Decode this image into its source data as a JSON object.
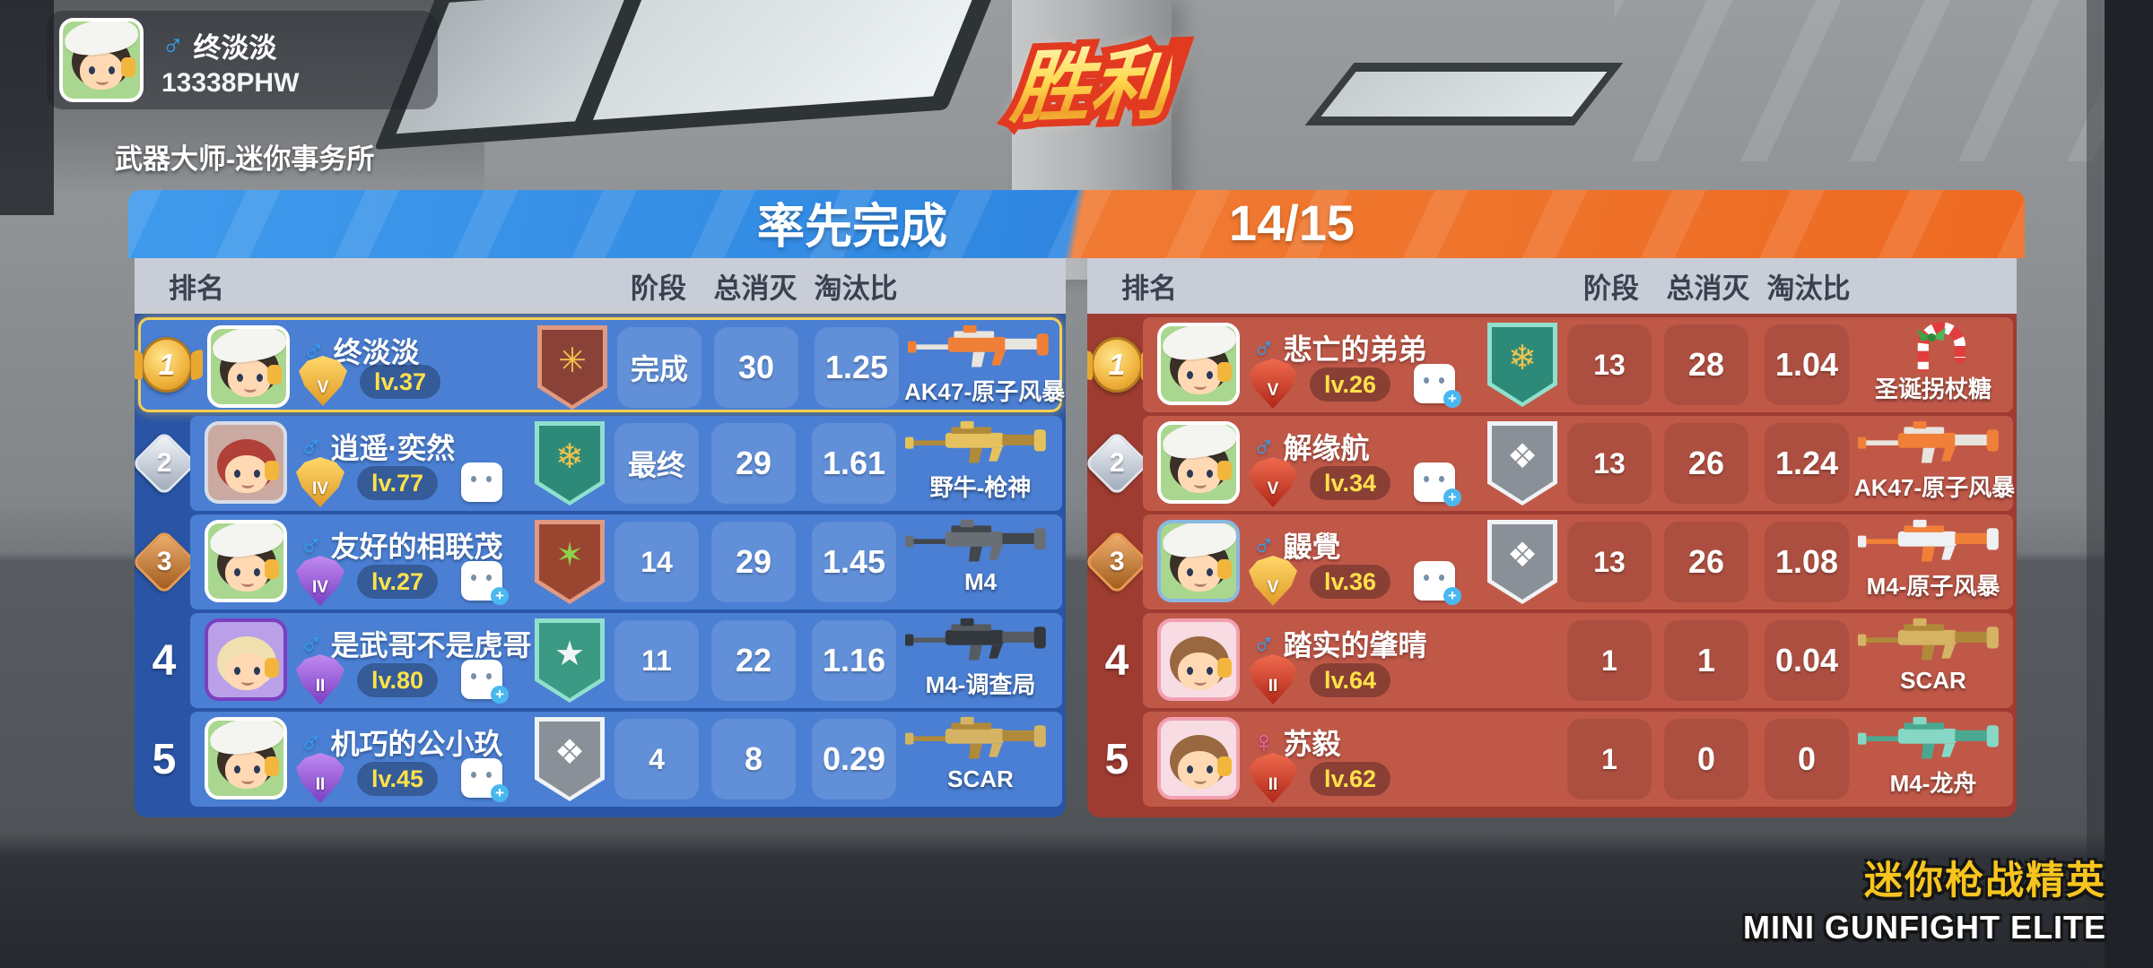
{
  "player_card": {
    "gender": "male",
    "name": "终淡淡",
    "id": "13338PHW"
  },
  "mode_label": "武器大师-迷你事务所",
  "victory_label": "胜利",
  "header": {
    "left_title": "率先完成",
    "right_score": "14/15"
  },
  "columns": {
    "rank": "排名",
    "stage": "阶段",
    "kills": "总消灭",
    "ratio": "淘汰比"
  },
  "teams": [
    {
      "side": "blue",
      "rows": [
        {
          "rank": "1",
          "rank_style": "gold",
          "highlight": true,
          "gender": "male",
          "name": "终淡淡",
          "badge": {
            "color": "gold",
            "tier": "V"
          },
          "level": "lv.37",
          "friend": null,
          "banner": {
            "outer": "#e09a82",
            "inner": "#8a4238",
            "emblem": "✳",
            "emblem_color": "#f0c24e"
          },
          "stage": "完成",
          "kills": "30",
          "ratio": "1.25",
          "weapon": {
            "name": "AK47-原子风暴",
            "type": "rifle",
            "primary": "#f08038",
            "secondary": "#e8e4de"
          },
          "avatar": {
            "bg": "#a9d78f",
            "frame": "#ffffff",
            "hair": "#3a3028",
            "hat": true
          }
        },
        {
          "rank": "2",
          "rank_style": "silver",
          "highlight": false,
          "gender": "male",
          "name": "逍遥·奕然",
          "badge": {
            "color": "gold",
            "tier": "IV"
          },
          "level": "lv.77",
          "friend": "chat",
          "banner": {
            "outer": "#8fe0cc",
            "inner": "#2e8a78",
            "emblem": "❄",
            "emblem_color": "#f0c24e"
          },
          "stage": "最终",
          "kills": "29",
          "ratio": "1.61",
          "weapon": {
            "name": "野牛-枪神",
            "type": "rifle",
            "primary": "#e6c25e",
            "secondary": "#b08a3a"
          },
          "avatar": {
            "bg": "#caa9a0",
            "frame": "#d7dde8",
            "hair": "#b04038",
            "hat": false
          }
        },
        {
          "rank": "3",
          "rank_style": "bronze",
          "highlight": false,
          "gender": "male",
          "name": "友好的相联茂",
          "badge": {
            "color": "purple",
            "tier": "IV"
          },
          "level": "lv.27",
          "friend": "add",
          "banner": {
            "outer": "#e09a82",
            "inner": "#9a4530",
            "emblem": "✶",
            "emblem_color": "#8fd04a"
          },
          "stage": "14",
          "kills": "29",
          "ratio": "1.45",
          "weapon": {
            "name": "M4",
            "type": "rifle",
            "primary": "#6a6f75",
            "secondary": "#42474c"
          },
          "avatar": {
            "bg": "#a9d78f",
            "frame": "#ffffff",
            "hair": "#3a3028",
            "hat": true
          }
        },
        {
          "rank": "4",
          "rank_style": "plain",
          "highlight": false,
          "gender": "male",
          "name": "是武哥不是虎哥",
          "badge": {
            "color": "purple",
            "tier": "II"
          },
          "level": "lv.80",
          "friend": "add",
          "banner": {
            "outer": "#8fe0cc",
            "inner": "#3a9a84",
            "emblem": "★",
            "emblem_color": "#f2f4f6"
          },
          "stage": "11",
          "kills": "22",
          "ratio": "1.16",
          "weapon": {
            "name": "M4-调查局",
            "type": "rifle",
            "primary": "#33383e",
            "secondary": "#565b61"
          },
          "avatar": {
            "bg": "#b9a0e8",
            "frame": "#7a3fc0",
            "hair": "#f0e0b0",
            "hat": false
          }
        },
        {
          "rank": "5",
          "rank_style": "plain",
          "highlight": false,
          "gender": "male",
          "name": "机巧的公小玖",
          "badge": {
            "color": "purple",
            "tier": "II"
          },
          "level": "lv.45",
          "friend": "add",
          "banner": {
            "outer": "#f0f2f4",
            "inner": "#8a9098",
            "emblem": "❖",
            "emblem_color": "#ffffff"
          },
          "stage": "4",
          "kills": "8",
          "ratio": "0.29",
          "weapon": {
            "name": "SCAR",
            "type": "rifle",
            "primary": "#d4b464",
            "secondary": "#b08a3a"
          },
          "avatar": {
            "bg": "#a9d78f",
            "frame": "#ffffff",
            "hair": "#3a3028",
            "hat": true
          }
        }
      ]
    },
    {
      "side": "red",
      "rows": [
        {
          "rank": "1",
          "rank_style": "gold",
          "highlight": false,
          "gender": "male",
          "name": "悲亡的弟弟",
          "badge": {
            "color": "red",
            "tier": "V"
          },
          "level": "lv.26",
          "friend": "add",
          "banner": {
            "outer": "#8fe0cc",
            "inner": "#2e8a78",
            "emblem": "❄",
            "emblem_color": "#f0c24e"
          },
          "stage": "13",
          "kills": "28",
          "ratio": "1.04",
          "weapon": {
            "name": "圣诞拐杖糖",
            "type": "candy",
            "primary": "#e23c3c",
            "secondary": "#ffffff"
          },
          "avatar": {
            "bg": "#a9d78f",
            "frame": "#ffffff",
            "hair": "#3a3028",
            "hat": true
          }
        },
        {
          "rank": "2",
          "rank_style": "silver",
          "highlight": false,
          "gender": "male",
          "name": "解缘航",
          "badge": {
            "color": "red",
            "tier": "V"
          },
          "level": "lv.34",
          "friend": "add",
          "banner": {
            "outer": "#f0f2f4",
            "inner": "#8a9098",
            "emblem": "❖",
            "emblem_color": "#ffffff"
          },
          "stage": "13",
          "kills": "26",
          "ratio": "1.24",
          "weapon": {
            "name": "AK47-原子风暴",
            "type": "rifle",
            "primary": "#f08038",
            "secondary": "#e8e4de"
          },
          "avatar": {
            "bg": "#a9d78f",
            "frame": "#ffffff",
            "hair": "#3a3028",
            "hat": true
          }
        },
        {
          "rank": "3",
          "rank_style": "bronze",
          "highlight": false,
          "gender": "male",
          "name": "鼹覺",
          "badge": {
            "color": "gold",
            "tier": "V"
          },
          "level": "lv.36",
          "friend": "add",
          "banner": {
            "outer": "#f0f2f4",
            "inner": "#8a9098",
            "emblem": "❖",
            "emblem_color": "#ffffff"
          },
          "stage": "13",
          "kills": "26",
          "ratio": "1.08",
          "weapon": {
            "name": "M4-原子风暴",
            "type": "rifle",
            "primary": "#eef0f2",
            "secondary": "#f08038"
          },
          "avatar": {
            "bg": "#a9d78f",
            "frame": "#8ab8e0",
            "hair": "#3a3028",
            "hat": true
          }
        },
        {
          "rank": "4",
          "rank_style": "plain",
          "highlight": false,
          "gender": "male",
          "name": "踏实的肇晴",
          "badge": {
            "color": "red",
            "tier": "II"
          },
          "level": "lv.64",
          "friend": null,
          "banner": null,
          "stage": "1",
          "kills": "1",
          "ratio": "0.04",
          "weapon": {
            "name": "SCAR",
            "type": "rifle",
            "primary": "#d4b464",
            "secondary": "#b08a3a"
          },
          "avatar": {
            "bg": "#f8dce4",
            "frame": "#f2a0b0",
            "hair": "#9a6840",
            "hat": false
          }
        },
        {
          "rank": "5",
          "rank_style": "plain",
          "highlight": false,
          "gender": "female",
          "name": "苏毅",
          "badge": {
            "color": "red",
            "tier": "II"
          },
          "level": "lv.62",
          "friend": null,
          "banner": null,
          "stage": "1",
          "kills": "0",
          "ratio": "0",
          "weapon": {
            "name": "M4-龙舟",
            "type": "rifle",
            "primary": "#86d8c4",
            "secondary": "#4aa890"
          },
          "avatar": {
            "bg": "#f8dce4",
            "frame": "#f2a0b0",
            "hair": "#9a6840",
            "hat": false
          }
        }
      ]
    }
  ],
  "branding": {
    "cn": "迷你枪战精英",
    "en": "MINI GUNFIGHT ELITE"
  },
  "colors": {
    "team_blue_row": "#4a7fd3",
    "team_blue_panel": "#2a55a6",
    "team_red_row": "#c05848",
    "team_red_panel": "#9e3c31",
    "header_blue": "#3f9aec",
    "header_orange": "#f07a32",
    "highlight_gold": "#f4cf52",
    "level_text": "#ffe14a",
    "brand_yellow": "#f7c51e",
    "male_blue": "#2fa3f7",
    "female_pink": "#f45fb5"
  }
}
